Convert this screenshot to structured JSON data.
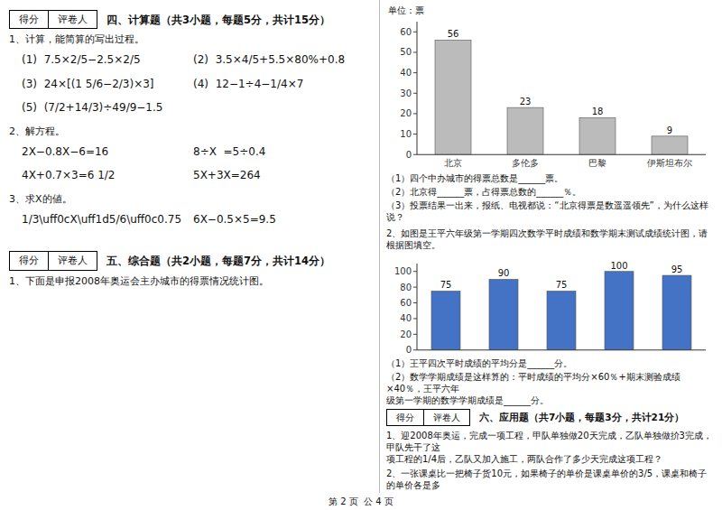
{
  "chart_data": [
    {
      "type": "bar",
      "categories": [
        "北京",
        "多伦多",
        "巴黎",
        "伊斯坦布尔"
      ],
      "values": [
        56,
        23,
        18,
        9
      ],
      "color": "#bbbbbb",
      "ylim": [
        0,
        65
      ],
      "yticks": [
        0,
        10,
        20,
        30,
        40,
        50,
        60
      ],
      "y_label": "单位：票",
      "data_labels": true,
      "grid": false,
      "annotations": [
        "得分",
        "评卷人",
        "四、计算题（共3小题，每题5分，共计15分）",
        "1、计算，能简算的写出过程。",
        "(1)  7.5×2/5−2.5×2/5",
        "(2)  3.5×4/5+5.5×80%+0.8",
        "(3)  24×[(1 5/6−2/3)×3]",
        "(4)  12−1÷4−1/4×7",
        "(5)  (7/2+14/3)÷49/9−1.5",
        "2、解方程。",
        "2X−0.8X−6=16",
        "8÷X  =5÷0.4",
        "4X+0.7×3=6 1/2",
        "5X+3X=264",
        "3、求X的値。",
        "1/3\\uff0cX\\uff1d5/6\\uff0c0.75",
        "6X−0.5×5=9.5",
        "得分",
        "评卷人",
        "五、综合题（共2小题，每题7分，共计14分）",
        "1、下面是申报2008年奥运会主办城市的得票情况统计图。",
        "（1）四个中办城市的得票总数是______票。",
        "（2）北京得______票，占得票总数的______％。",
        "（3）投票结果一出来，报纸、电视都说：“北京得票是数遥遥领先”，为什么这样说？"
      ]
    },
    {
      "type": "bar",
      "categories": [
        null,
        null,
        null,
        null,
        null
      ],
      "values": [
        75,
        90,
        75,
        100,
        95
      ],
      "color": "#4472C4",
      "ylim": [
        0,
        110
      ],
      "yticks": [
        0,
        20,
        40,
        60,
        80,
        100
      ],
      "data_labels": true,
      "tick_labels": "y",
      "grid": false,
      "annotations": [
        "2、如图是王平六年级第一学期四次数学平时成绩和数学期末测试成绩统计图，请根据图填空。",
        "（1）王平四次平时成绩的平均分是______分。",
        "（2）数学学期成绩是这样算的：平时成绩的平均分×60％+期末测验成绩×40％，王平六年",
        "级第一学期的数学学期成绩是______分。",
        "得分",
        "评卷人",
        "六、应用题（共7小题，每题3分，共计21分）",
        "1、迎2008年奥运，完成一项工程，甲队单独做20天完成，乙队单独做扴3完成，甲队先干了这",
        "项工程的1/4后，乙队又加入施工，两队合作了多少天完成这项工程？",
        "2、一张课桌比一把椅子货10元，如果椅子的单价是课桌单价的3/5，课桌和椅子的单价各是多",
        "第 2 页  公 4 页"
      ]
    }
  ]
}
